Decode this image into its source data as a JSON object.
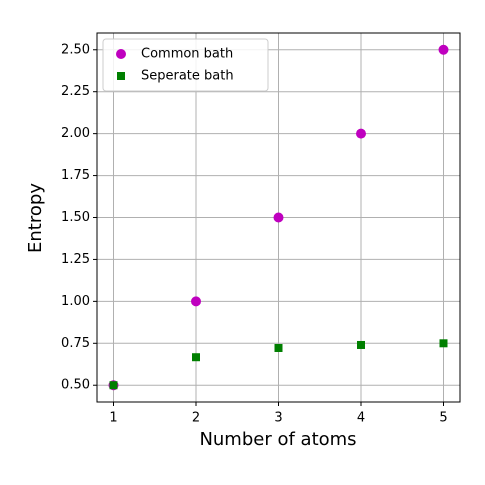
{
  "chart_data": {
    "type": "scatter",
    "xlabel": "Number of atoms",
    "ylabel": "Entropy",
    "x": [
      1,
      2,
      3,
      4,
      5
    ],
    "series": [
      {
        "name": "Common bath",
        "color": "#bf00bf",
        "marker": "circle",
        "values": [
          0.5,
          1.0,
          1.5,
          2.0,
          2.5
        ]
      },
      {
        "name": "Seperate bath",
        "color": "#007f00",
        "marker": "square",
        "values": [
          0.5,
          0.667,
          0.722,
          0.74,
          0.75
        ]
      }
    ],
    "xlim": [
      0.8,
      5.2
    ],
    "xticks": [
      1,
      2,
      3,
      4,
      5
    ],
    "ylim": [
      0.4,
      2.6
    ],
    "yticks": [
      {
        "value": 0.5,
        "label": "0.50"
      },
      {
        "value": 0.75,
        "label": "0.75"
      },
      {
        "value": 1.0,
        "label": "1.00"
      },
      {
        "value": 1.25,
        "label": "1.25"
      },
      {
        "value": 1.5,
        "label": "1.50"
      },
      {
        "value": 1.75,
        "label": "1.75"
      },
      {
        "value": 2.0,
        "label": "2.00"
      },
      {
        "value": 2.25,
        "label": "2.25"
      },
      {
        "value": 2.5,
        "label": "2.50"
      }
    ],
    "grid": true,
    "legend": "upper left"
  }
}
